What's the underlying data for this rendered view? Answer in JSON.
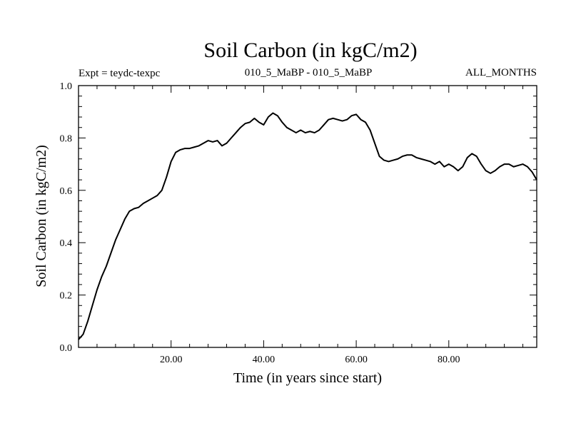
{
  "chart_data": {
    "type": "line",
    "title": "Soil Carbon (in kgC/m2)",
    "left_subtitle": "Expt = teydc-texpc",
    "center_subtitle": "010_5_MaBP - 010_5_MaBP",
    "right_subtitle": "ALL_MONTHS",
    "xlabel": "Time (in years since start)",
    "ylabel": "Soil Carbon (in kgC/m2)",
    "xlim": [
      0,
      99
    ],
    "ylim": [
      0,
      1
    ],
    "x_ticks": [
      20,
      40,
      60,
      80
    ],
    "x_tick_labels": [
      "20.00",
      "40.00",
      "60.00",
      "80.00"
    ],
    "y_ticks": [
      0,
      0.2,
      0.4,
      0.6,
      0.8,
      1.0
    ],
    "y_tick_labels": [
      "0.0",
      "0.2",
      "0.4",
      "0.6",
      "0.8",
      "1.0"
    ],
    "line_color": "#000000",
    "series": [
      {
        "name": "Soil Carbon",
        "x": [
          0,
          1,
          2,
          3,
          4,
          5,
          6,
          7,
          8,
          9,
          10,
          11,
          12,
          13,
          14,
          15,
          16,
          17,
          18,
          19,
          20,
          21,
          22,
          23,
          24,
          25,
          26,
          27,
          28,
          29,
          30,
          31,
          32,
          33,
          34,
          35,
          36,
          37,
          38,
          39,
          40,
          41,
          42,
          43,
          44,
          45,
          46,
          47,
          48,
          49,
          50,
          51,
          52,
          53,
          54,
          55,
          56,
          57,
          58,
          59,
          60,
          61,
          62,
          63,
          64,
          65,
          66,
          67,
          68,
          69,
          70,
          71,
          72,
          73,
          74,
          75,
          76,
          77,
          78,
          79,
          80,
          81,
          82,
          83,
          84,
          85,
          86,
          87,
          88,
          89,
          90,
          91,
          92,
          93,
          94,
          95,
          96,
          97,
          98,
          99
        ],
        "values": [
          0.03,
          0.05,
          0.1,
          0.16,
          0.22,
          0.27,
          0.31,
          0.36,
          0.41,
          0.45,
          0.49,
          0.52,
          0.53,
          0.535,
          0.55,
          0.56,
          0.57,
          0.58,
          0.6,
          0.65,
          0.71,
          0.745,
          0.755,
          0.76,
          0.76,
          0.765,
          0.77,
          0.78,
          0.79,
          0.785,
          0.79,
          0.77,
          0.78,
          0.8,
          0.82,
          0.84,
          0.855,
          0.86,
          0.875,
          0.86,
          0.85,
          0.88,
          0.895,
          0.885,
          0.86,
          0.84,
          0.83,
          0.82,
          0.83,
          0.82,
          0.825,
          0.82,
          0.83,
          0.85,
          0.87,
          0.875,
          0.87,
          0.865,
          0.87,
          0.885,
          0.89,
          0.87,
          0.86,
          0.83,
          0.78,
          0.73,
          0.715,
          0.71,
          0.715,
          0.72,
          0.73,
          0.735,
          0.735,
          0.725,
          0.72,
          0.715,
          0.71,
          0.7,
          0.71,
          0.69,
          0.7,
          0.69,
          0.675,
          0.69,
          0.725,
          0.74,
          0.73,
          0.7,
          0.675,
          0.665,
          0.675,
          0.69,
          0.7,
          0.7,
          0.69,
          0.695,
          0.7,
          0.69,
          0.67,
          0.64
        ]
      }
    ]
  }
}
